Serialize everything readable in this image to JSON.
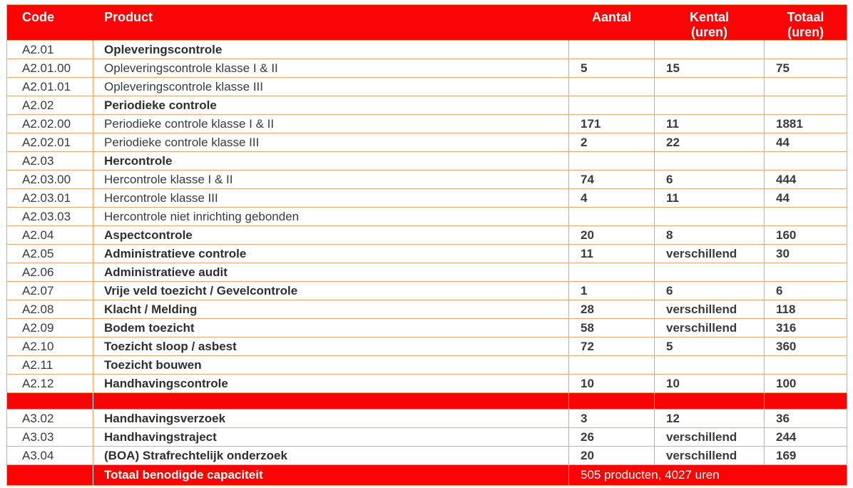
{
  "colors": {
    "header_red": "#fa0505",
    "grid_orange": "#f2a46f",
    "body_text": "#3a3a3a",
    "header_text": "#ffffff"
  },
  "header": {
    "code": "Code",
    "product": "Product",
    "aantal": "Aantal",
    "kental": "Kental",
    "kental_sub": "(uren)",
    "totaal": "Totaal",
    "totaal_sub": "(uren)"
  },
  "rows": [
    {
      "code": "A2.01",
      "product": "Opleveringscontrole",
      "aantal": "",
      "kental": "",
      "totaal": ""
    },
    {
      "code": "A2.01.00",
      "product": "Opleveringscontrole klasse I & II",
      "aantal": "5",
      "kental": "15",
      "totaal": "75"
    },
    {
      "code": "A2.01.01",
      "product": "Opleveringscontrole klasse III",
      "aantal": "",
      "kental": "",
      "totaal": ""
    },
    {
      "code": "A2.02",
      "product": "Periodieke controle",
      "aantal": "",
      "kental": "",
      "totaal": ""
    },
    {
      "code": "A2.02.00",
      "product": "Periodieke controle klasse I & II",
      "aantal": "171",
      "kental": "11",
      "totaal": "1881"
    },
    {
      "code": "A2.02.01",
      "product": "Periodieke controle klasse III",
      "aantal": "2",
      "kental": "22",
      "totaal": "44"
    },
    {
      "code": "A2.03",
      "product": "Hercontrole",
      "aantal": "",
      "kental": "",
      "totaal": ""
    },
    {
      "code": "A2.03.00",
      "product": "Hercontrole klasse I & II",
      "aantal": "74",
      "kental": "6",
      "totaal": "444"
    },
    {
      "code": "A2.03.01",
      "product": "Hercontrole klasse III",
      "aantal": "4",
      "kental": "11",
      "totaal": "44"
    },
    {
      "code": "A2.03.03",
      "product": "Hercontrole niet inrichting gebonden",
      "aantal": "",
      "kental": "",
      "totaal": ""
    },
    {
      "code": "A2.04",
      "product": "Aspectcontrole",
      "aantal": "20",
      "kental": "8",
      "totaal": "160"
    },
    {
      "code": "A2.05",
      "product": "Administratieve controle",
      "aantal": "11",
      "kental": "verschillend",
      "totaal": "30"
    },
    {
      "code": "A2.06",
      "product": "Administratieve audit",
      "aantal": "",
      "kental": "",
      "totaal": ""
    },
    {
      "code": "A2.07",
      "product": "Vrije veld toezicht / Gevelcontrole",
      "aantal": "1",
      "kental": "6",
      "totaal": "6"
    },
    {
      "code": "A2.08",
      "product": "Klacht / Melding",
      "aantal": "28",
      "kental": "verschillend",
      "totaal": "118"
    },
    {
      "code": "A2.09",
      "product": "Bodem toezicht",
      "aantal": "58",
      "kental": "verschillend",
      "totaal": "316"
    },
    {
      "code": "A2.10",
      "product": "Toezicht sloop / asbest",
      "aantal": "72",
      "kental": "5",
      "totaal": "360"
    },
    {
      "code": "A2.11",
      "product": "Toezicht bouwen",
      "aantal": "",
      "kental": "",
      "totaal": ""
    },
    {
      "code": "A2.12",
      "product": "Handhavingscontrole",
      "aantal": "10",
      "kental": "10",
      "totaal": "100"
    },
    {
      "code": "A3.02",
      "product": "Handhavingsverzoek",
      "aantal": "3",
      "kental": "12",
      "totaal": "36"
    },
    {
      "code": "A3.03",
      "product": "Handhavingstraject",
      "aantal": "26",
      "kental": "verschillend",
      "totaal": "244"
    },
    {
      "code": "A3.04",
      "product": "(BOA) Strafrechtelijk onderzoek",
      "aantal": "20",
      "kental": "verschillend",
      "totaal": "169"
    }
  ],
  "footer": {
    "label": "Totaal benodigde capaciteit",
    "value": "505 producten, 4027 uren"
  }
}
